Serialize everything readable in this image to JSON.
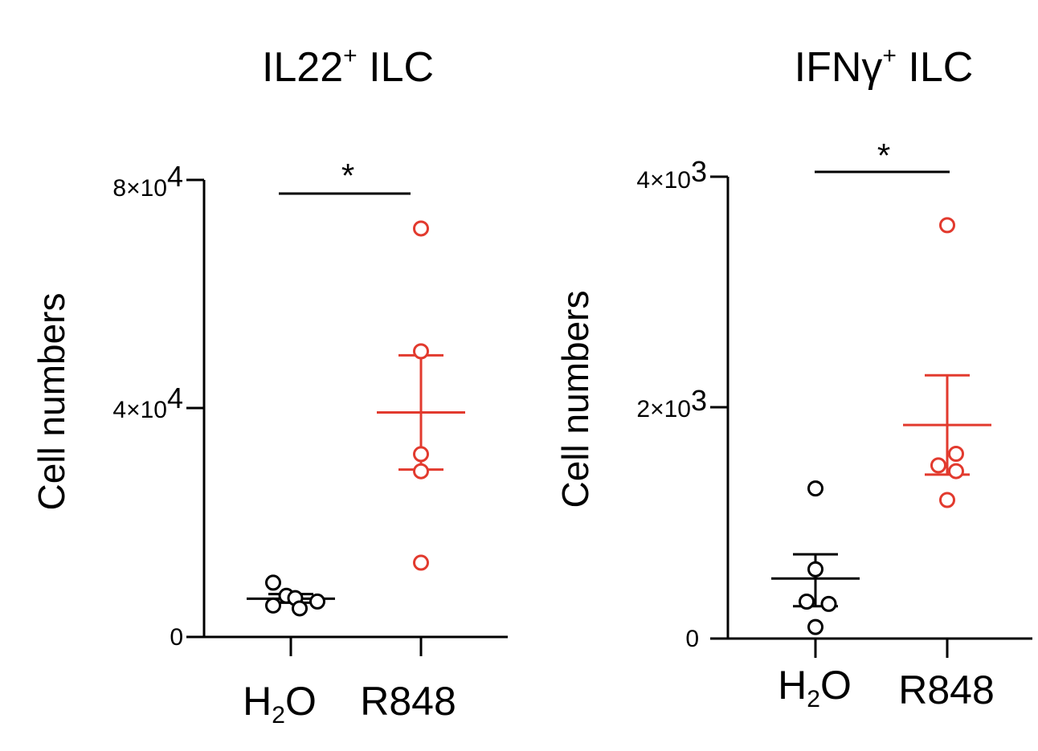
{
  "colors": {
    "h2o": "#000000",
    "r848": "#e23a2e",
    "axis": "#000000"
  },
  "chart_data": [
    {
      "type": "scatter",
      "title_main": "IL22",
      "title_sup": "+",
      "title_rest": " ILC",
      "ylabel": "Cell numbers",
      "ylim": [
        0,
        80000
      ],
      "yticks": [
        {
          "value": 0,
          "mant": "0",
          "exp": ""
        },
        {
          "value": 40000,
          "mant": "4×10",
          "exp": "4"
        },
        {
          "value": 80000,
          "mant": "8×10",
          "exp": "4"
        }
      ],
      "categories": [
        {
          "main": "H",
          "sub": "2",
          "rest": "O"
        },
        {
          "main": "R848",
          "sub": "",
          "rest": ""
        }
      ],
      "series": [
        {
          "color": "h2o",
          "values": [
            9500,
            5500,
            7200,
            6800,
            5000,
            6200
          ],
          "offsets": [
            -0.2,
            -0.2,
            -0.05,
            0.05,
            0.1,
            0.3
          ],
          "mean": 6700,
          "sem_low": 6000,
          "sem_high": 7500
        },
        {
          "color": "r848",
          "values": [
            71500,
            50000,
            32000,
            29000,
            13000
          ],
          "offsets": [
            0,
            0,
            0,
            0,
            0
          ],
          "mean": 39300,
          "sem_low": 29300,
          "sem_high": 49300
        }
      ],
      "significance": "*"
    },
    {
      "type": "scatter",
      "title_main": "IFNγ",
      "title_sup": "+",
      "title_rest": " ILC",
      "ylabel": "Cell numbers",
      "ylim": [
        0,
        4000
      ],
      "yticks": [
        {
          "value": 0,
          "mant": "0",
          "exp": ""
        },
        {
          "value": 2000,
          "mant": "2×10",
          "exp": "3"
        },
        {
          "value": 4000,
          "mant": "4×10",
          "exp": "3"
        }
      ],
      "categories": [
        {
          "main": "H",
          "sub": "2",
          "rest": "O"
        },
        {
          "main": "R848",
          "sub": "",
          "rest": ""
        }
      ],
      "series": [
        {
          "color": "h2o",
          "values": [
            1300,
            600,
            320,
            300,
            100
          ],
          "offsets": [
            0,
            0,
            -0.1,
            0.15,
            0
          ],
          "mean": 520,
          "sem_low": 280,
          "sem_high": 730
        },
        {
          "color": "r848",
          "values": [
            3580,
            1600,
            1500,
            1450,
            1200
          ],
          "offsets": [
            0,
            0.1,
            -0.1,
            0.1,
            0
          ],
          "mean": 1850,
          "sem_low": 1420,
          "sem_high": 2280
        }
      ],
      "significance": "*"
    }
  ]
}
